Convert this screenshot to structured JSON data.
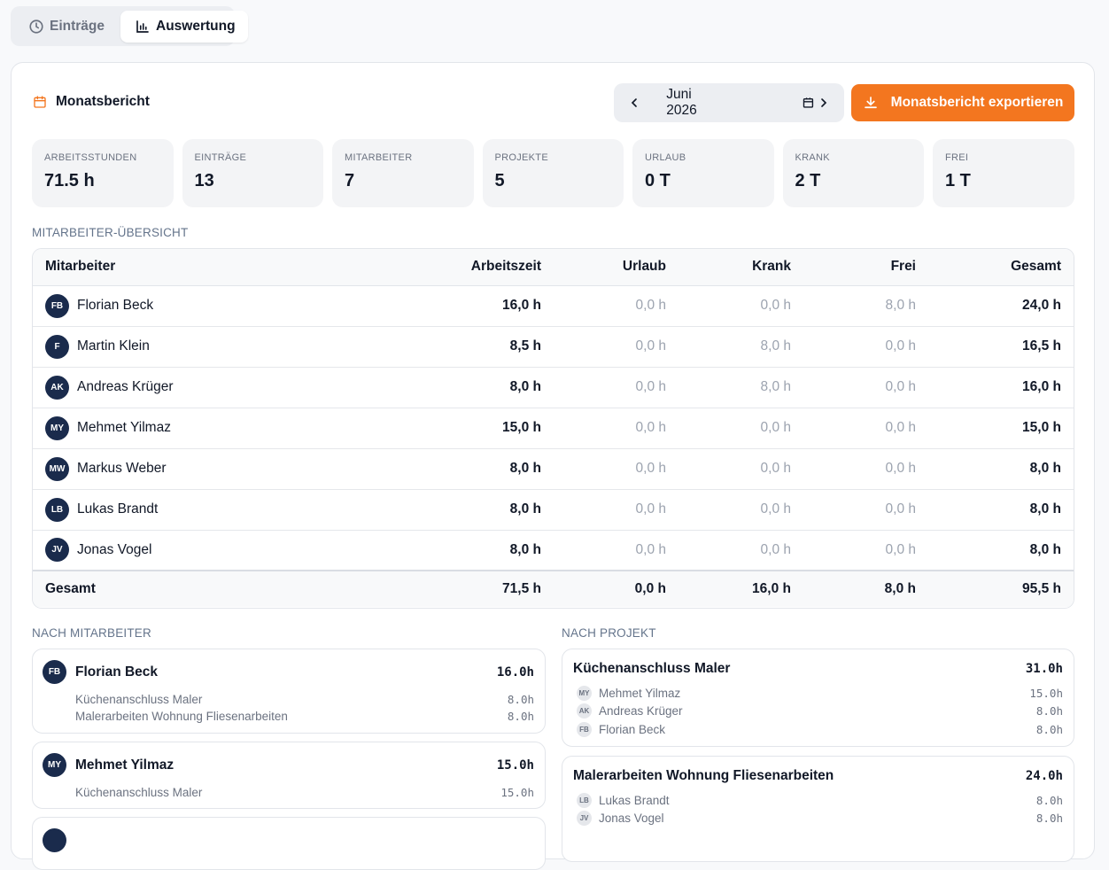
{
  "tabs": [
    {
      "label": "Einträge",
      "icon": "clock-icon",
      "active": false
    },
    {
      "label": "Auswertung",
      "icon": "bar-chart-icon",
      "active": true
    }
  ],
  "report": {
    "title": "Monatsbericht",
    "month_label": "Juni 2026",
    "export_label": "Monatsbericht exportieren",
    "accent_color": "#f3761f"
  },
  "stats": [
    {
      "label": "Arbeitsstunden",
      "value": "71.5 h"
    },
    {
      "label": "Einträge",
      "value": "13"
    },
    {
      "label": "Mitarbeiter",
      "value": "7"
    },
    {
      "label": "Projekte",
      "value": "5"
    },
    {
      "label": "Urlaub",
      "value": "0 T"
    },
    {
      "label": "Krank",
      "value": "2 T"
    },
    {
      "label": "Frei",
      "value": "1 T"
    }
  ],
  "overview": {
    "section_label": "Mitarbeiter-Übersicht",
    "headers": [
      "Mitarbeiter",
      "Arbeitszeit",
      "Urlaub",
      "Krank",
      "Frei",
      "Gesamt"
    ],
    "rows": [
      {
        "initials": "FB",
        "name": "Florian Beck",
        "work": "16,0 h",
        "vacation": "0,0 h",
        "sick": "0,0 h",
        "free": "8,0 h",
        "total": "24,0 h"
      },
      {
        "initials": "F",
        "name": "Martin Klein",
        "work": "8,5 h",
        "vacation": "0,0 h",
        "sick": "8,0 h",
        "free": "0,0 h",
        "total": "16,5 h"
      },
      {
        "initials": "AK",
        "name": "Andreas Krüger",
        "work": "8,0 h",
        "vacation": "0,0 h",
        "sick": "8,0 h",
        "free": "0,0 h",
        "total": "16,0 h"
      },
      {
        "initials": "MY",
        "name": "Mehmet Yilmaz",
        "work": "15,0 h",
        "vacation": "0,0 h",
        "sick": "0,0 h",
        "free": "0,0 h",
        "total": "15,0 h"
      },
      {
        "initials": "MW",
        "name": "Markus Weber",
        "work": "8,0 h",
        "vacation": "0,0 h",
        "sick": "0,0 h",
        "free": "0,0 h",
        "total": "8,0 h"
      },
      {
        "initials": "LB",
        "name": "Lukas Brandt",
        "work": "8,0 h",
        "vacation": "0,0 h",
        "sick": "0,0 h",
        "free": "0,0 h",
        "total": "8,0 h"
      },
      {
        "initials": "JV",
        "name": "Jonas Vogel",
        "work": "8,0 h",
        "vacation": "0,0 h",
        "sick": "0,0 h",
        "free": "0,0 h",
        "total": "8,0 h"
      }
    ],
    "footer": {
      "label": "Gesamt",
      "work": "71,5 h",
      "vacation": "0,0 h",
      "sick": "16,0 h",
      "free": "8,0 h",
      "total": "95,5 h"
    }
  },
  "by_employee": {
    "section_label": "Nach Mitarbeiter",
    "cards": [
      {
        "initials": "FB",
        "name": "Florian Beck",
        "total": "16.0h",
        "items": [
          {
            "label": "Küchenanschluss Maler",
            "hours": "8.0h"
          },
          {
            "label": "Malerarbeiten Wohnung Fliesenarbeiten",
            "hours": "8.0h"
          }
        ]
      },
      {
        "initials": "MY",
        "name": "Mehmet Yilmaz",
        "total": "15.0h",
        "items": [
          {
            "label": "Küchenanschluss Maler",
            "hours": "15.0h"
          }
        ]
      }
    ]
  },
  "by_project": {
    "section_label": "Nach Projekt",
    "cards": [
      {
        "name": "Küchenanschluss Maler",
        "total": "31.0h",
        "items": [
          {
            "initials": "MY",
            "label": "Mehmet Yilmaz",
            "hours": "15.0h"
          },
          {
            "initials": "AK",
            "label": "Andreas Krüger",
            "hours": "8.0h"
          },
          {
            "initials": "FB",
            "label": "Florian Beck",
            "hours": "8.0h"
          }
        ]
      },
      {
        "name": "Malerarbeiten Wohnung Fliesenarbeiten",
        "total": "24.0h",
        "items": [
          {
            "initials": "LB",
            "label": "Lukas Brandt",
            "hours": "8.0h"
          },
          {
            "initials": "JV",
            "label": "Jonas Vogel",
            "hours": "8.0h"
          }
        ]
      }
    ]
  }
}
